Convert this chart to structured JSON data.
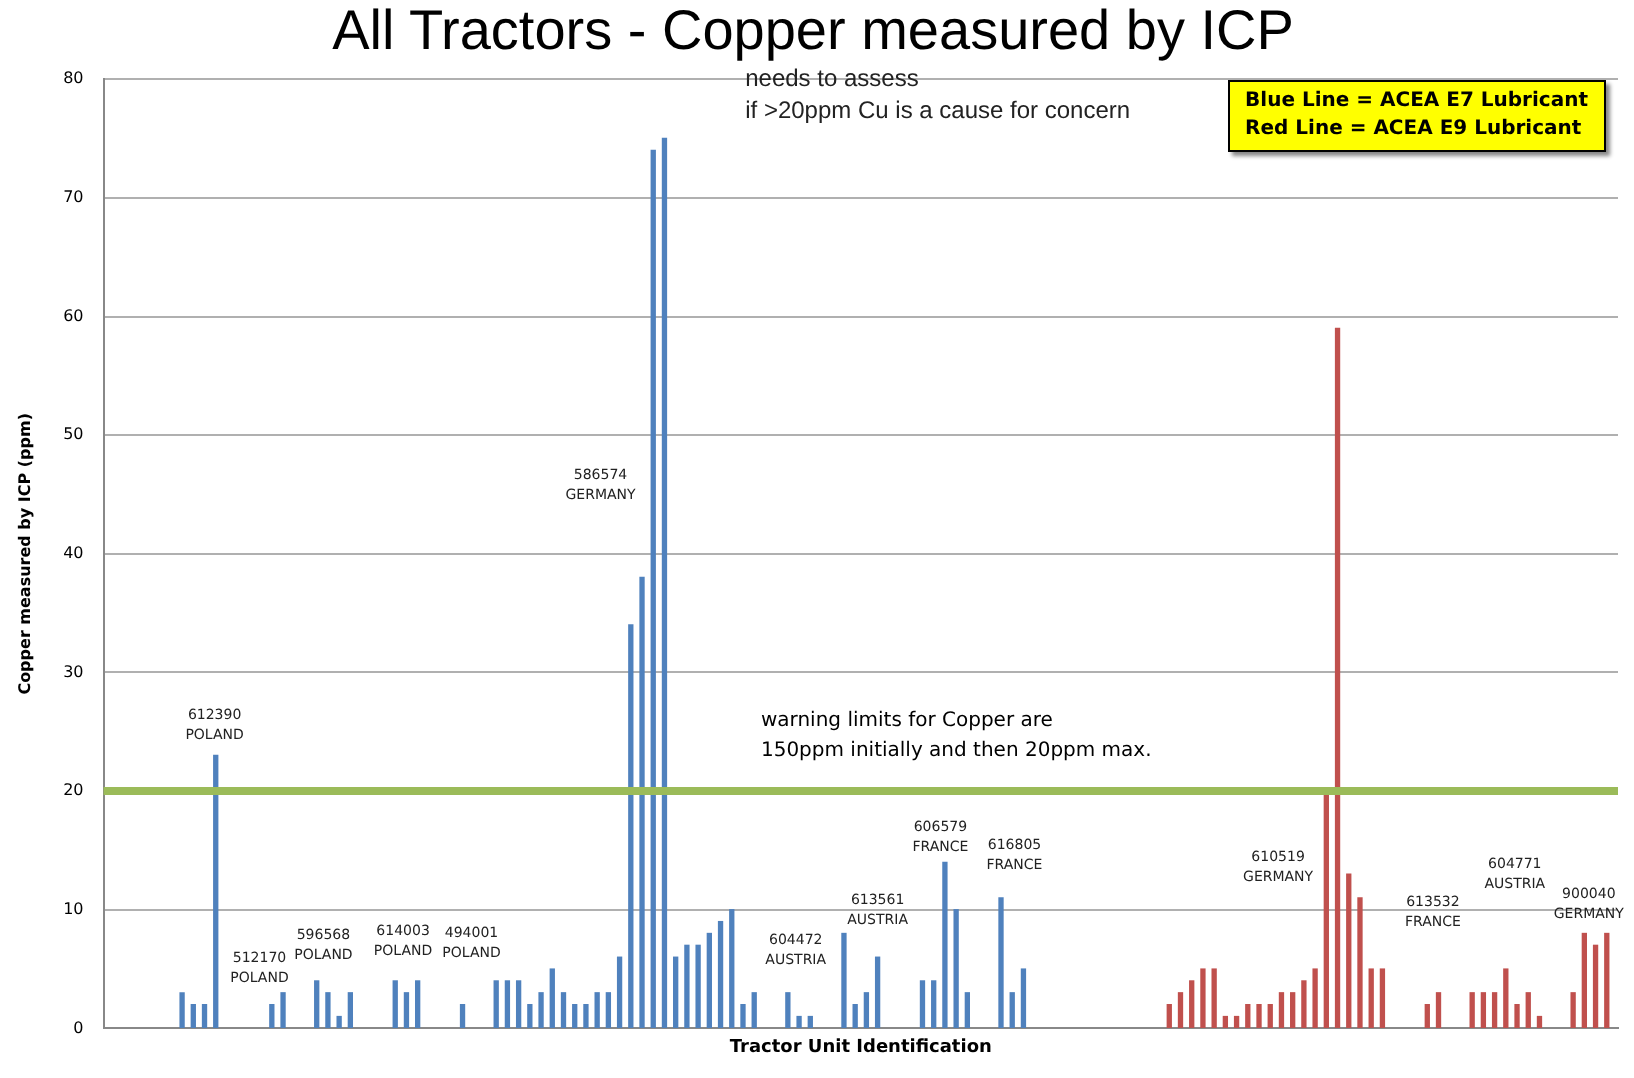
{
  "chart_data": {
    "type": "bar",
    "title": "All Tractors - Copper measured by ICP",
    "xlabel": "Tractor Unit Identification",
    "ylabel": "Copper measured by ICP (ppm)",
    "categories": [
      null,
      null,
      null,
      null,
      null,
      null,
      null,
      null,
      null,
      null,
      null,
      null,
      null,
      null,
      null,
      null,
      null,
      null,
      null,
      null,
      null,
      null,
      null,
      null,
      null,
      null,
      null,
      null,
      null,
      null,
      null,
      null,
      null,
      null,
      null,
      null,
      null,
      null,
      null,
      null,
      null,
      null,
      null,
      null,
      null,
      null,
      null,
      null,
      null,
      null,
      null,
      null,
      null,
      null,
      null,
      null,
      null,
      null,
      null,
      null,
      null,
      null,
      null,
      null,
      null,
      null,
      null,
      null,
      null,
      null,
      null,
      null,
      null,
      null,
      null,
      null,
      null,
      null,
      null,
      null,
      null,
      null,
      null,
      null,
      null,
      null,
      null,
      null,
      null,
      null,
      null,
      null,
      null,
      null,
      null,
      null,
      null,
      null,
      null,
      null,
      null,
      null,
      null,
      null,
      null,
      null,
      null,
      null,
      null,
      null,
      null,
      null,
      null,
      null,
      null,
      null,
      null,
      null,
      null,
      null,
      null,
      null,
      null,
      null,
      null,
      null,
      null,
      null,
      null,
      null,
      null,
      null,
      null,
      null,
      null,
      null
    ],
    "series": [
      {
        "color": "#4f81bd",
        "values": [
          null,
          null,
          null,
          null,
          null,
          null,
          null,
          3,
          2,
          2,
          23,
          null,
          null,
          null,
          null,
          2,
          3,
          null,
          null,
          4,
          3,
          1,
          3,
          null,
          null,
          null,
          4,
          3,
          4,
          null,
          null,
          null,
          2,
          null,
          null,
          4,
          4,
          4,
          2,
          3,
          5,
          3,
          2,
          2,
          3,
          3,
          6,
          34,
          38,
          74,
          75,
          6,
          7,
          7,
          8,
          9,
          10,
          2,
          3,
          null,
          null,
          3,
          1,
          1,
          null,
          null,
          8,
          2,
          3,
          6,
          null,
          null,
          null,
          4,
          4,
          14,
          10,
          3,
          null,
          null,
          11,
          3,
          5,
          null,
          null,
          null,
          null,
          null,
          null,
          null,
          null,
          null,
          null,
          null,
          null,
          null,
          null,
          null,
          null,
          null,
          null,
          null,
          null,
          null,
          null,
          null,
          null,
          null,
          null,
          null,
          null,
          null,
          null,
          null,
          null,
          null,
          null,
          null,
          null,
          null,
          null,
          null,
          null,
          null,
          null,
          null,
          null,
          null,
          null,
          null,
          null,
          null,
          null,
          null,
          null,
          null
        ]
      },
      {
        "color": "#c0504d",
        "values": [
          null,
          null,
          null,
          null,
          null,
          null,
          null,
          null,
          null,
          null,
          null,
          null,
          null,
          null,
          null,
          null,
          null,
          null,
          null,
          null,
          null,
          null,
          null,
          null,
          null,
          null,
          null,
          null,
          null,
          null,
          null,
          null,
          null,
          null,
          null,
          null,
          null,
          null,
          null,
          null,
          null,
          null,
          null,
          null,
          null,
          null,
          null,
          null,
          null,
          null,
          null,
          null,
          null,
          null,
          null,
          null,
          null,
          null,
          null,
          null,
          null,
          null,
          null,
          null,
          null,
          null,
          null,
          null,
          null,
          null,
          null,
          null,
          null,
          null,
          null,
          null,
          null,
          null,
          null,
          null,
          null,
          null,
          null,
          null,
          null,
          null,
          null,
          null,
          null,
          null,
          null,
          null,
          null,
          null,
          null,
          2,
          3,
          4,
          5,
          5,
          1,
          1,
          2,
          2,
          2,
          3,
          3,
          4,
          5,
          20,
          59,
          13,
          11,
          5,
          5,
          null,
          null,
          null,
          2,
          3,
          null,
          null,
          3,
          3,
          3,
          5,
          2,
          3,
          1,
          null,
          null,
          3,
          8,
          7,
          8,
          null
        ]
      }
    ],
    "ylim": [
      0,
      80
    ],
    "yticks": [
      0,
      10,
      20,
      30,
      40,
      50,
      60,
      70,
      80
    ],
    "grid": "y",
    "tick_labels": "y",
    "ref_lines": [
      {
        "axis": "y",
        "value": 20,
        "color": "#9bbb59",
        "label": "warning limits for Copper are\n150ppm initially and then 20ppm max."
      }
    ],
    "annotations": [
      "needs to assess\nif >20ppm Cu is a cause for concern",
      "Blue Line = ACEA E7 Lubricant\nRed Line = ACEA E9 Lubricant",
      "612390\nPOLAND",
      "512170\nPOLAND",
      "596568\nPOLAND",
      "614003\nPOLAND",
      "494001\nPOLAND",
      "586574\nGERMANY",
      "604472\nAUSTRIA",
      "613561\nAUSTRIA",
      "606579\nFRANCE",
      "616805\nFRANCE",
      "610519\nGERMANY",
      "613532\nFRANCE",
      "604771\nAUSTRIA",
      "900040\nGERMANY"
    ]
  }
}
